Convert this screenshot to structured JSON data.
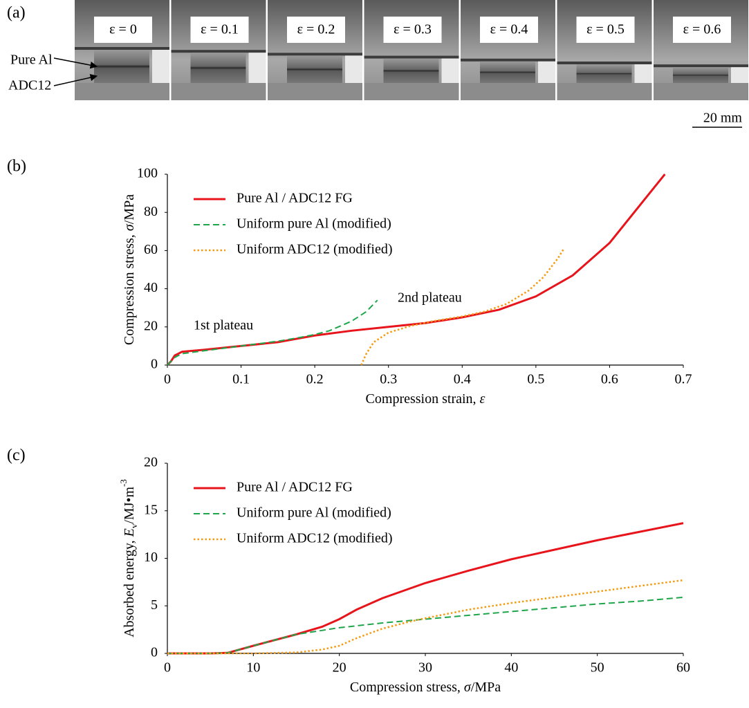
{
  "photo_panel": {
    "panel_label": "(a)",
    "frame_labels": [
      "ε = 0",
      "ε = 0.1",
      "ε = 0.2",
      "ε = 0.3",
      "ε = 0.4",
      "ε = 0.5",
      "ε = 0.6"
    ],
    "layer_labels": [
      "Pure Al",
      "ADC12"
    ],
    "scale_bar": "20 mm"
  },
  "chart_data": [
    {
      "type": "line",
      "panel_label": "(b)",
      "x_label": [
        "Compression strain,  ",
        "ε"
      ],
      "y_label": [
        "Compression stress, ",
        "σ",
        "/MPa"
      ],
      "annotations": [
        "1st plateau",
        "2nd plateau"
      ],
      "xlim": [
        0,
        0.7
      ],
      "xticks": [
        0,
        0.1,
        0.2,
        0.3,
        0.4,
        0.5,
        0.6,
        0.7
      ],
      "ylim": [
        0,
        100
      ],
      "yticks": [
        0,
        20,
        40,
        60,
        80,
        100
      ],
      "grid": false,
      "legend": "upper-left",
      "series": [
        {
          "name": "Pure Al / ADC12 FG",
          "color": "#e8141b",
          "style": "solid",
          "x": [
            0,
            0.005,
            0.01,
            0.02,
            0.05,
            0.1,
            0.15,
            0.2,
            0.25,
            0.3,
            0.35,
            0.4,
            0.45,
            0.5,
            0.55,
            0.6,
            0.65,
            0.675
          ],
          "values": [
            0,
            2,
            5,
            7,
            8,
            10,
            12,
            15.5,
            18,
            20,
            22,
            25,
            29,
            36,
            47,
            64,
            88,
            100
          ]
        },
        {
          "name": "Uniform pure Al (modified)",
          "color": "#1ea54a",
          "style": "dashed",
          "x": [
            0,
            0.01,
            0.02,
            0.05,
            0.1,
            0.15,
            0.18,
            0.2,
            0.22,
            0.25,
            0.27,
            0.285
          ],
          "values": [
            0,
            4,
            6,
            7.5,
            10,
            12.5,
            14.5,
            16,
            18,
            23,
            28,
            34
          ]
        },
        {
          "name": "Uniform ADC12 (modified)",
          "color": "#f59a10",
          "style": "dotted",
          "x": [
            0.263,
            0.27,
            0.28,
            0.3,
            0.33,
            0.36,
            0.4,
            0.43,
            0.46,
            0.49,
            0.51,
            0.53,
            0.538
          ],
          "values": [
            0,
            6,
            12,
            17,
            20.5,
            23,
            25.5,
            28,
            32,
            39,
            46,
            56,
            61
          ]
        }
      ]
    },
    {
      "type": "line",
      "panel_label": "(c)",
      "x_label": [
        "Compression stress, ",
        "σ",
        "/MPa"
      ],
      "y_label": [
        "Absorbed energy, ",
        "E",
        "v",
        "/MJ•m",
        "-3"
      ],
      "xlim": [
        0,
        60
      ],
      "xticks": [
        0,
        10,
        20,
        30,
        40,
        50,
        60
      ],
      "ylim": [
        0,
        20
      ],
      "yticks": [
        0,
        5,
        10,
        15,
        20
      ],
      "grid": false,
      "legend": "upper-left",
      "series": [
        {
          "name": "Pure Al / ADC12 FG",
          "color": "#e8141b",
          "style": "solid",
          "x": [
            0,
            5,
            7,
            10,
            15,
            18,
            20,
            22,
            25,
            30,
            35,
            40,
            45,
            50,
            55,
            60
          ],
          "values": [
            0,
            0,
            0.05,
            0.8,
            2,
            2.8,
            3.6,
            4.6,
            5.8,
            7.4,
            8.7,
            9.9,
            10.9,
            11.9,
            12.8,
            13.7
          ]
        },
        {
          "name": "Uniform pure Al (modified)",
          "color": "#1ea54a",
          "style": "dashed",
          "x": [
            0,
            5,
            7,
            10,
            15,
            20,
            25,
            30,
            35,
            40,
            45,
            50,
            55,
            60
          ],
          "values": [
            0,
            0,
            0.05,
            0.8,
            2,
            2.7,
            3.2,
            3.6,
            4,
            4.4,
            4.8,
            5.2,
            5.5,
            5.9
          ]
        },
        {
          "name": "Uniform ADC12 (modified)",
          "color": "#f59a10",
          "style": "dotted",
          "x": [
            0,
            10,
            15,
            18,
            20,
            22,
            25,
            28,
            30,
            35,
            40,
            45,
            50,
            55,
            60
          ],
          "values": [
            0,
            0,
            0.1,
            0.4,
            0.8,
            1.6,
            2.6,
            3.3,
            3.7,
            4.6,
            5.3,
            5.9,
            6.5,
            7.1,
            7.7
          ]
        }
      ]
    }
  ]
}
